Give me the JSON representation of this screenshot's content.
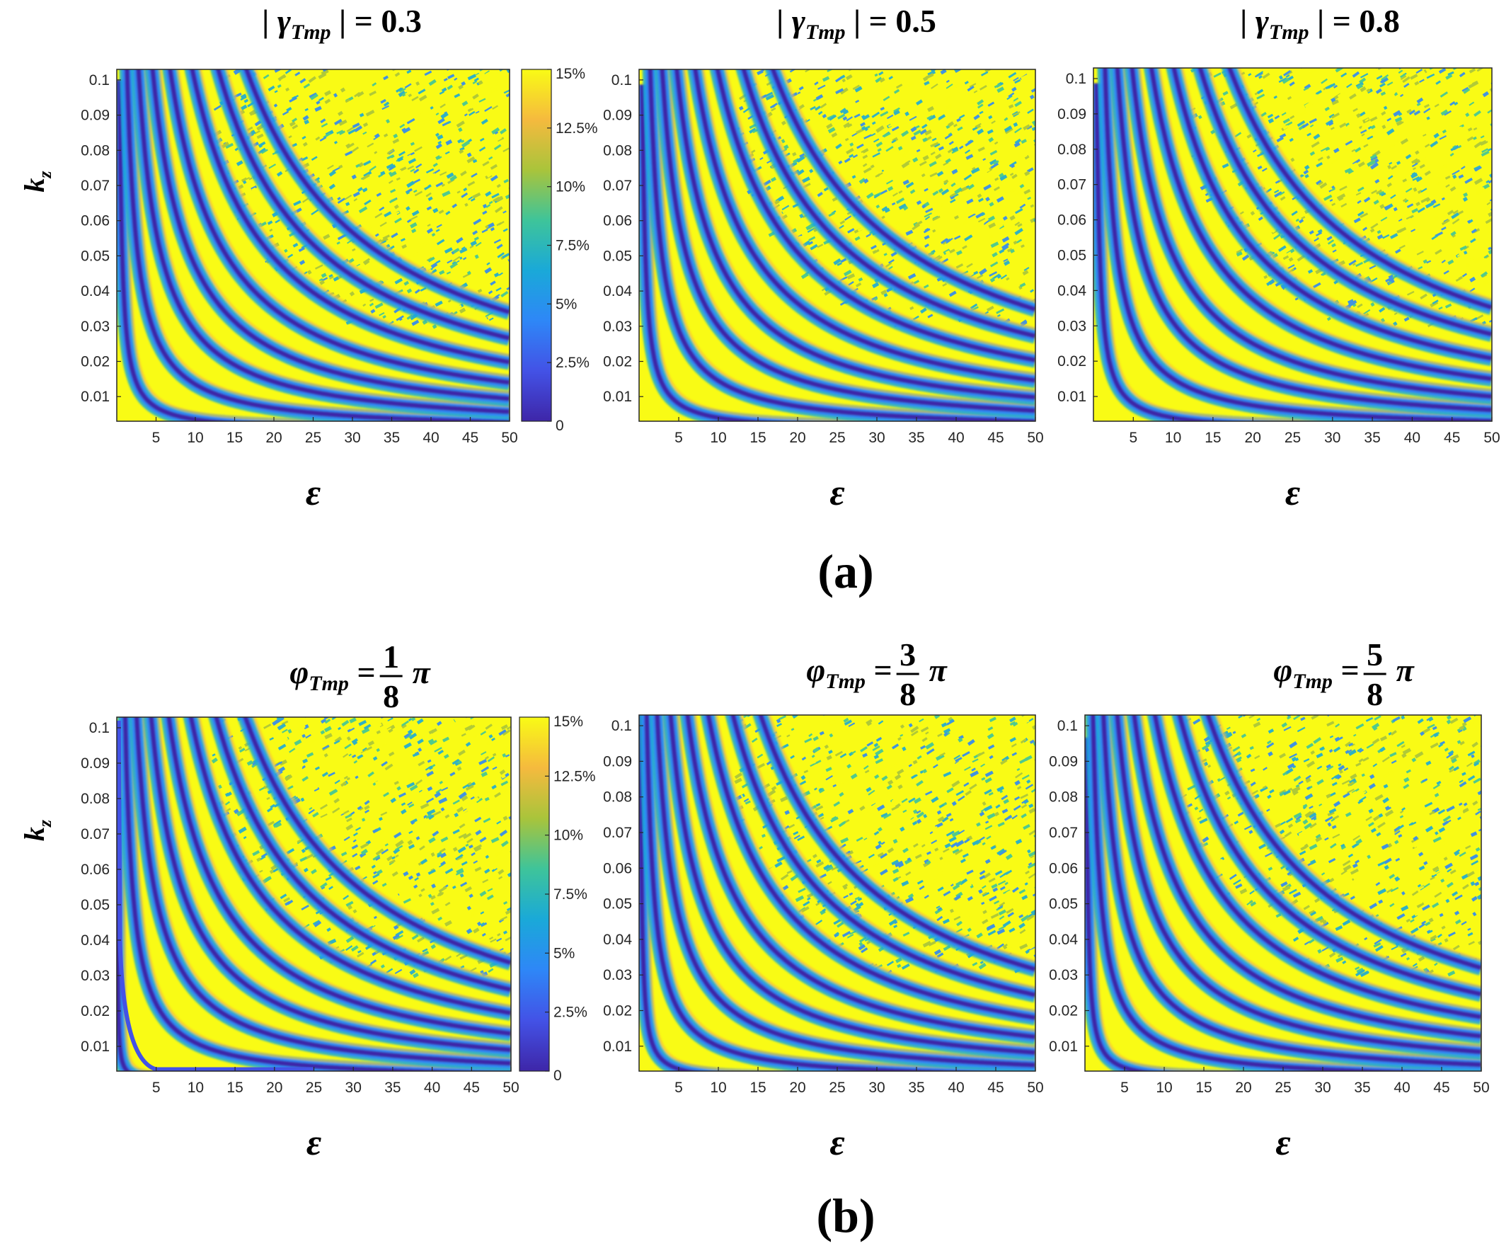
{
  "figure": {
    "panel_a_label": "(a)",
    "panel_b_label": "(b)"
  },
  "colors": {
    "ramp": [
      "#3e26a8",
      "#4352e6",
      "#2e87f7",
      "#1aa9d8",
      "#3ec49a",
      "#a9c43b",
      "#f5ba3e",
      "#f9fb15"
    ]
  },
  "chart_data": [
    {
      "type": "heatmap",
      "id": "a1",
      "row": "a",
      "title_pre": "|",
      "title_var": "γ",
      "title_sub": "Tmp",
      "title_post": "| = 0.3",
      "xlabel": "ε",
      "ylabel": "k",
      "ylabel_sub": "z",
      "xlim": [
        0,
        50
      ],
      "ylim": [
        0.003,
        0.103
      ],
      "xticks": [
        "5",
        "10",
        "15",
        "20",
        "25",
        "30",
        "35",
        "40",
        "45",
        "50"
      ],
      "yticks": [
        "0.1",
        "0.09",
        "0.08",
        "0.07",
        "0.06",
        "0.05",
        "0.04",
        "0.03",
        "0.02",
        "0.01"
      ],
      "colorbar": true,
      "colorbar_ticks": [
        "15%",
        "12.5%",
        "10%",
        "7.5%",
        "5%",
        "2.5%",
        "0"
      ],
      "clim": [
        0,
        15
      ],
      "curve_constants": [
        0.035,
        0.135,
        0.285,
        0.47,
        0.7,
        0.99,
        1.33,
        1.7
      ],
      "low_branch": false
    },
    {
      "type": "heatmap",
      "id": "a2",
      "row": "a",
      "title_pre": "|",
      "title_var": "γ",
      "title_sub": "Tmp",
      "title_post": "| = 0.5",
      "xlabel": "ε",
      "ylabel": "",
      "ylabel_sub": "",
      "xlim": [
        0,
        50
      ],
      "ylim": [
        0.003,
        0.103
      ],
      "xticks": [
        "5",
        "10",
        "15",
        "20",
        "25",
        "30",
        "35",
        "40",
        "45",
        "50"
      ],
      "yticks": [
        "0.1",
        "0.09",
        "0.08",
        "0.07",
        "0.06",
        "0.05",
        "0.04",
        "0.03",
        "0.02",
        "0.01"
      ],
      "colorbar": false,
      "curve_constants": [
        0.04,
        0.145,
        0.3,
        0.49,
        0.73,
        1.02,
        1.36,
        1.74
      ],
      "low_branch": false
    },
    {
      "type": "heatmap",
      "id": "a3",
      "row": "a",
      "title_pre": "|",
      "title_var": "γ",
      "title_sub": "Tmp",
      "title_post": "| = 0.8",
      "xlabel": "ε",
      "ylabel": "",
      "ylabel_sub": "",
      "xlim": [
        0,
        50
      ],
      "ylim": [
        0.003,
        0.103
      ],
      "xticks": [
        "5",
        "10",
        "15",
        "20",
        "25",
        "30",
        "35",
        "40",
        "45",
        "50"
      ],
      "yticks": [
        "0.1",
        "0.09",
        "0.08",
        "0.07",
        "0.06",
        "0.05",
        "0.04",
        "0.03",
        "0.02",
        "0.01"
      ],
      "colorbar": false,
      "curve_constants": [
        0.04,
        0.15,
        0.31,
        0.5,
        0.75,
        1.04,
        1.38,
        1.76
      ],
      "low_branch": false
    },
    {
      "type": "heatmap",
      "id": "b1",
      "row": "b",
      "title_pre": "",
      "title_var": "φ",
      "title_sub": "Tmp",
      "title_post": " = ",
      "frac_num": "1",
      "frac_den": "8",
      "frac_tail": "π",
      "xlabel": "ε",
      "ylabel": "k",
      "ylabel_sub": "z",
      "xlim": [
        0,
        50
      ],
      "ylim": [
        0.003,
        0.103
      ],
      "xticks": [
        "5",
        "10",
        "15",
        "20",
        "25",
        "30",
        "35",
        "40",
        "45",
        "50"
      ],
      "yticks": [
        "0.1",
        "0.09",
        "0.08",
        "0.07",
        "0.06",
        "0.05",
        "0.04",
        "0.03",
        "0.02",
        "0.01"
      ],
      "colorbar": true,
      "colorbar_ticks": [
        "15%",
        "12.5%",
        "10%",
        "7.5%",
        "5%",
        "2.5%",
        "0"
      ],
      "clim": [
        0,
        15
      ],
      "curve_constants": [
        0.004,
        0.11,
        0.26,
        0.45,
        0.68,
        0.97,
        1.3,
        1.68
      ],
      "low_branch": true
    },
    {
      "type": "heatmap",
      "id": "b2",
      "row": "b",
      "title_pre": "",
      "title_var": "φ",
      "title_sub": "Tmp",
      "title_post": " = ",
      "frac_num": "3",
      "frac_den": "8",
      "frac_tail": "π",
      "xlabel": "ε",
      "ylabel": "",
      "ylabel_sub": "",
      "xlim": [
        0,
        50
      ],
      "ylim": [
        0.003,
        0.103
      ],
      "xticks": [
        "5",
        "10",
        "15",
        "20",
        "25",
        "30",
        "35",
        "40",
        "45",
        "50"
      ],
      "yticks": [
        "0.1",
        "0.09",
        "0.08",
        "0.07",
        "0.06",
        "0.05",
        "0.04",
        "0.03",
        "0.02",
        "0.01"
      ],
      "colorbar": false,
      "curve_constants": [
        0.018,
        0.1,
        0.235,
        0.41,
        0.63,
        0.9,
        1.22,
        1.58
      ],
      "low_branch": false
    },
    {
      "type": "heatmap",
      "id": "b3",
      "row": "b",
      "title_pre": "",
      "title_var": "φ",
      "title_sub": "Tmp",
      "title_post": " = ",
      "frac_num": "5",
      "frac_den": "8",
      "frac_tail": "π",
      "xlabel": "ε",
      "ylabel": "",
      "ylabel_sub": "",
      "xlim": [
        0,
        50
      ],
      "ylim": [
        0.003,
        0.103
      ],
      "xticks": [
        "5",
        "10",
        "15",
        "20",
        "25",
        "30",
        "35",
        "40",
        "45",
        "50"
      ],
      "yticks": [
        "0.1",
        "0.09",
        "0.08",
        "0.07",
        "0.06",
        "0.05",
        "0.04",
        "0.03",
        "0.02",
        "0.01"
      ],
      "colorbar": false,
      "curve_constants": [
        0.02,
        0.105,
        0.24,
        0.42,
        0.64,
        0.91,
        1.23,
        1.6
      ],
      "low_branch": false
    }
  ]
}
